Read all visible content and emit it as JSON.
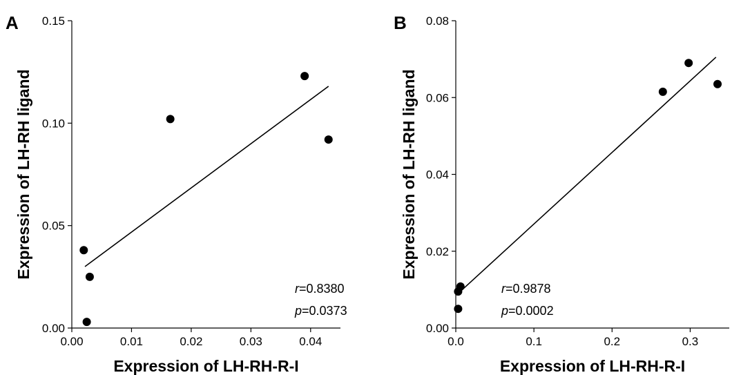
{
  "chart_data": [
    {
      "type": "scatter",
      "panel": "A",
      "xlabel": "Expression of LH-RH-R-I",
      "ylabel": "Expression of LH-RH ligand",
      "xlim": [
        0.0,
        0.045
      ],
      "ylim": [
        0.0,
        0.15
      ],
      "xticks": [
        0.0,
        0.01,
        0.02,
        0.03,
        0.04
      ],
      "xtick_labels": [
        "0.00",
        "0.01",
        "0.02",
        "0.03",
        "0.04"
      ],
      "yticks": [
        0.0,
        0.05,
        0.1,
        0.15
      ],
      "ytick_labels": [
        "0.00",
        "0.05",
        "0.10",
        "0.15"
      ],
      "points": [
        {
          "x": 0.002,
          "y": 0.038
        },
        {
          "x": 0.0025,
          "y": 0.003
        },
        {
          "x": 0.003,
          "y": 0.025
        },
        {
          "x": 0.0165,
          "y": 0.102
        },
        {
          "x": 0.039,
          "y": 0.123
        },
        {
          "x": 0.043,
          "y": 0.092
        }
      ],
      "fit_line": {
        "x": [
          0.0022,
          0.043
        ],
        "y": [
          0.03,
          0.118
        ]
      },
      "stats": {
        "r_label": "r",
        "r_value": "=0.8380",
        "p_label": "p",
        "p_value": "=0.0373"
      },
      "grid": false
    },
    {
      "type": "scatter",
      "panel": "B",
      "xlabel": "Expression of LH-RH-R-I",
      "ylabel": "Expression of LH-RH ligand",
      "xlim": [
        0.0,
        0.35
      ],
      "ylim": [
        0.0,
        0.08
      ],
      "xticks": [
        0.0,
        0.1,
        0.2,
        0.3
      ],
      "xtick_labels": [
        "0.0",
        "0.1",
        "0.2",
        "0.3"
      ],
      "yticks": [
        0.0,
        0.02,
        0.04,
        0.06,
        0.08
      ],
      "ytick_labels": [
        "0.00",
        "0.02",
        "0.04",
        "0.06",
        "0.08"
      ],
      "points": [
        {
          "x": 0.003,
          "y": 0.005
        },
        {
          "x": 0.003,
          "y": 0.0095
        },
        {
          "x": 0.006,
          "y": 0.0108
        },
        {
          "x": 0.265,
          "y": 0.0615
        },
        {
          "x": 0.298,
          "y": 0.069
        },
        {
          "x": 0.335,
          "y": 0.0635
        }
      ],
      "fit_line": {
        "x": [
          0.003,
          0.333
        ],
        "y": [
          0.009,
          0.0705
        ]
      },
      "stats": {
        "r_label": "r",
        "r_value": "=0.9878",
        "p_label": "p",
        "p_value": "=0.0002"
      },
      "grid": false
    }
  ]
}
